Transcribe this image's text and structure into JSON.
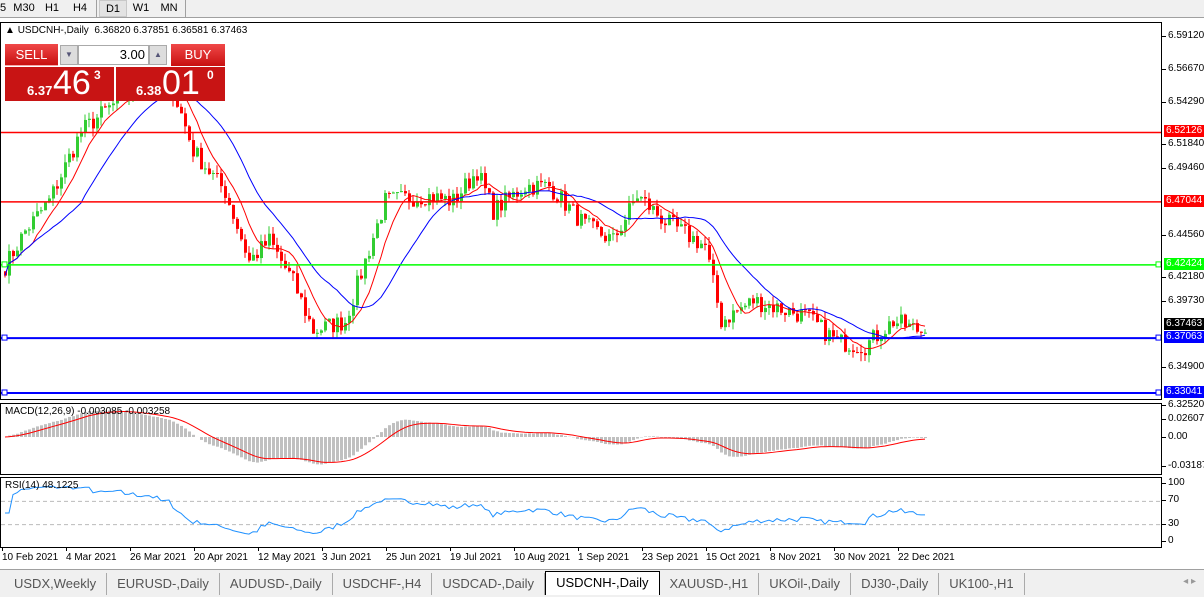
{
  "toolbar": {
    "timeframes": [
      "5",
      "M30",
      "H1",
      "H4",
      "D1",
      "W1",
      "MN"
    ],
    "active": "D1"
  },
  "chart": {
    "title": "USDCNH-,Daily",
    "ohlc": "6.36820 6.37851 6.36581 6.37463"
  },
  "trade": {
    "sell_label": "SELL",
    "buy_label": "BUY",
    "lot": "3.00",
    "sell_big": "6.37",
    "sell_pips": "46",
    "sell_frac": "3",
    "buy_big": "6.38",
    "buy_pips": "01",
    "buy_frac": "0"
  },
  "price_axis": {
    "labels": [
      "6.59120",
      "6.56670",
      "6.54290",
      "6.51840",
      "6.49460",
      "6.44560",
      "6.42180",
      "6.39730",
      "6.34900",
      "6.32520"
    ],
    "min": 6.3252,
    "max": 6.5912
  },
  "levels": [
    {
      "price": 6.52126,
      "label": "6.52126",
      "color": "#ff0000"
    },
    {
      "price": 6.47044,
      "label": "6.47044",
      "color": "#ff0000"
    },
    {
      "price": 6.42424,
      "label": "6.42424",
      "color": "#00ff00"
    },
    {
      "price": 6.37063,
      "label": "6.37063",
      "color": "#0000ff"
    },
    {
      "price": 6.33041,
      "label": "6.33041",
      "color": "#0000ff"
    }
  ],
  "last_price": {
    "price": 6.37463,
    "label": "6.37463"
  },
  "price_path": [
    [
      0,
      6.4234
    ],
    [
      5,
      6.449
    ],
    [
      11,
      6.471
    ],
    [
      19,
      6.522
    ],
    [
      25,
      6.537
    ],
    [
      35,
      6.559
    ],
    [
      42,
      6.552
    ],
    [
      47,
      6.508
    ],
    [
      55,
      6.478
    ],
    [
      61,
      6.427
    ],
    [
      66,
      6.442
    ],
    [
      72,
      6.412
    ],
    [
      77,
      6.376
    ],
    [
      85,
      6.383
    ],
    [
      90,
      6.427
    ],
    [
      95,
      6.471
    ],
    [
      105,
      6.475
    ],
    [
      112,
      6.471
    ],
    [
      118,
      6.493
    ],
    [
      122,
      6.464
    ],
    [
      130,
      6.482
    ],
    [
      136,
      6.482
    ],
    [
      145,
      6.453
    ],
    [
      152,
      6.442
    ],
    [
      158,
      6.475
    ],
    [
      165,
      6.456
    ],
    [
      175,
      6.438
    ],
    [
      179,
      6.383
    ],
    [
      187,
      6.398
    ],
    [
      200,
      6.387
    ],
    [
      208,
      6.368
    ],
    [
      215,
      6.365
    ],
    [
      222,
      6.383
    ],
    [
      230,
      6.3746
    ]
  ],
  "colors": {
    "bull": "#32cd32",
    "bear": "#ff0000",
    "ma_fast": "#ff0000",
    "ma_slow": "#0000ff"
  },
  "macd": {
    "title": "MACD(12,26,9) -0.003085 -0.003258",
    "labels": [
      "0.02607",
      "0.00",
      "-0.03187"
    ]
  },
  "rsi": {
    "title": "RSI(14) 48.1225",
    "labels": [
      "100",
      "70",
      "30",
      "0"
    ]
  },
  "dates": [
    "10 Feb 2021",
    "4 Mar 2021",
    "26 Mar 2021",
    "20 Apr 2021",
    "12 May 2021",
    "3 Jun 2021",
    "25 Jun 2021",
    "19 Jul 2021",
    "10 Aug 2021",
    "1 Sep 2021",
    "23 Sep 2021",
    "15 Oct 2021",
    "8 Nov 2021",
    "30 Nov 2021",
    "22 Dec 2021"
  ],
  "tabs": [
    "USDX,Weekly",
    "EURUSD-,Daily",
    "AUDUSD-,Daily",
    "USDCHF-,H4",
    "USDCAD-,Daily",
    "USDCNH-,Daily",
    "XAUUSD-,H1",
    "UKOil-,Daily",
    "DJ30-,Daily",
    "UK100-,H1"
  ],
  "active_tab": "USDCNH-,Daily"
}
